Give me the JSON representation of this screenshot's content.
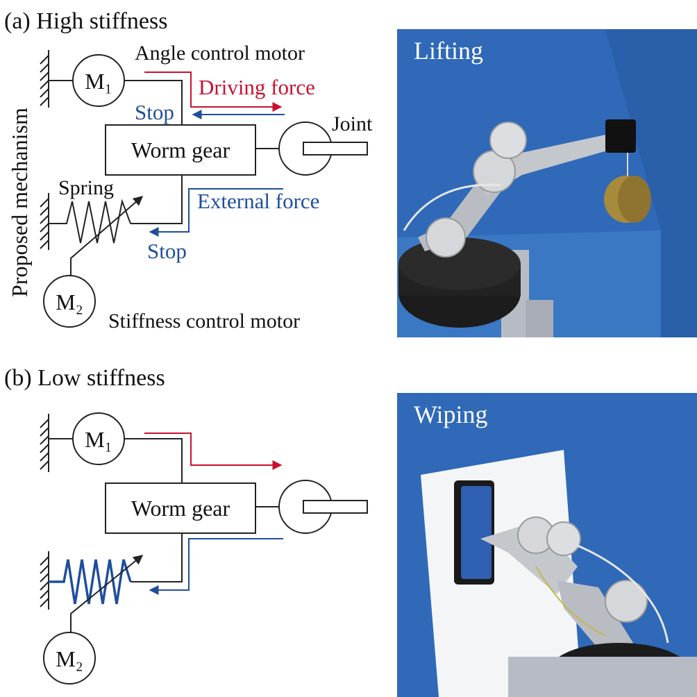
{
  "panel_a": {
    "title": "(a) High stiffness",
    "side_label": "Proposed mechanism",
    "motor1_label": "M₁",
    "motor2_label": "M₂",
    "angle_motor_label": "Angle control motor",
    "stiffness_motor_label": "Stiffness control motor",
    "driving_force_label": "Driving force",
    "stop_top_label": "Stop",
    "stop_bottom_label": "Stop",
    "external_force_label": "External force",
    "worm_gear_label": "Worm gear",
    "joint_label": "Joint",
    "spring_label": "Spring",
    "photo_label": "Lifting"
  },
  "panel_b": {
    "title": "(b) Low stiffness",
    "motor1_label": "M₁",
    "motor2_label": "M₂",
    "worm_gear_label": "Worm gear",
    "photo_label": "Wiping"
  },
  "colors": {
    "driving_red": "#c8102e",
    "blue": "#1f4e9c",
    "backdrop_blue": "#2f69b8"
  }
}
